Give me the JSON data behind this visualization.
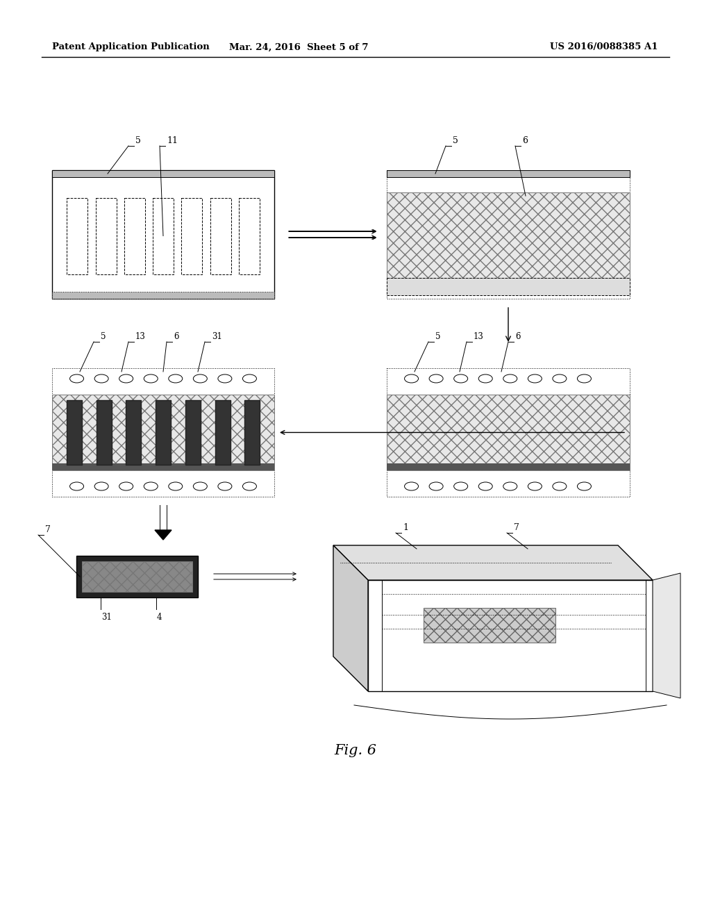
{
  "bg_color": "#ffffff",
  "header_left": "Patent Application Publication",
  "header_mid": "Mar. 24, 2016  Sheet 5 of 7",
  "header_right": "US 2016/0088385 A1",
  "fig_label": "Fig. 6",
  "line_color": "#000000"
}
